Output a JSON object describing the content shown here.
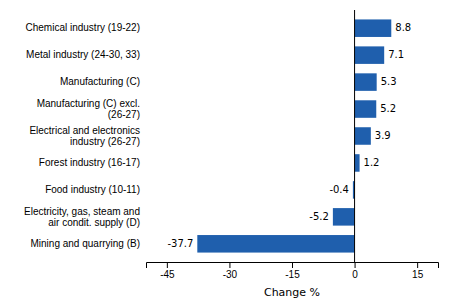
{
  "chart_data": {
    "type": "bar",
    "orientation": "horizontal",
    "categories": [
      "Chemical industry (19-22)",
      "Metal industry (24-30, 33)",
      "Manufacturing (C)",
      "Manufacturing (C) excl. (26-27)",
      "Electrical and electronics industry (26-27)",
      "Forest industry (16-17)",
      "Food industry (10-11)",
      "Electricity, gas, steam and air condit. supply (D)",
      "Mining and quarrying (B)"
    ],
    "values": [
      8.8,
      7.1,
      5.3,
      5.2,
      3.9,
      1.2,
      -0.4,
      -5.2,
      -37.7
    ],
    "color": "#1F5FAD",
    "xlabel": "Change %",
    "xlim": [
      -50,
      20
    ],
    "xticks": [
      -45,
      -30,
      -15,
      0,
      15
    ],
    "data_labels": true
  }
}
